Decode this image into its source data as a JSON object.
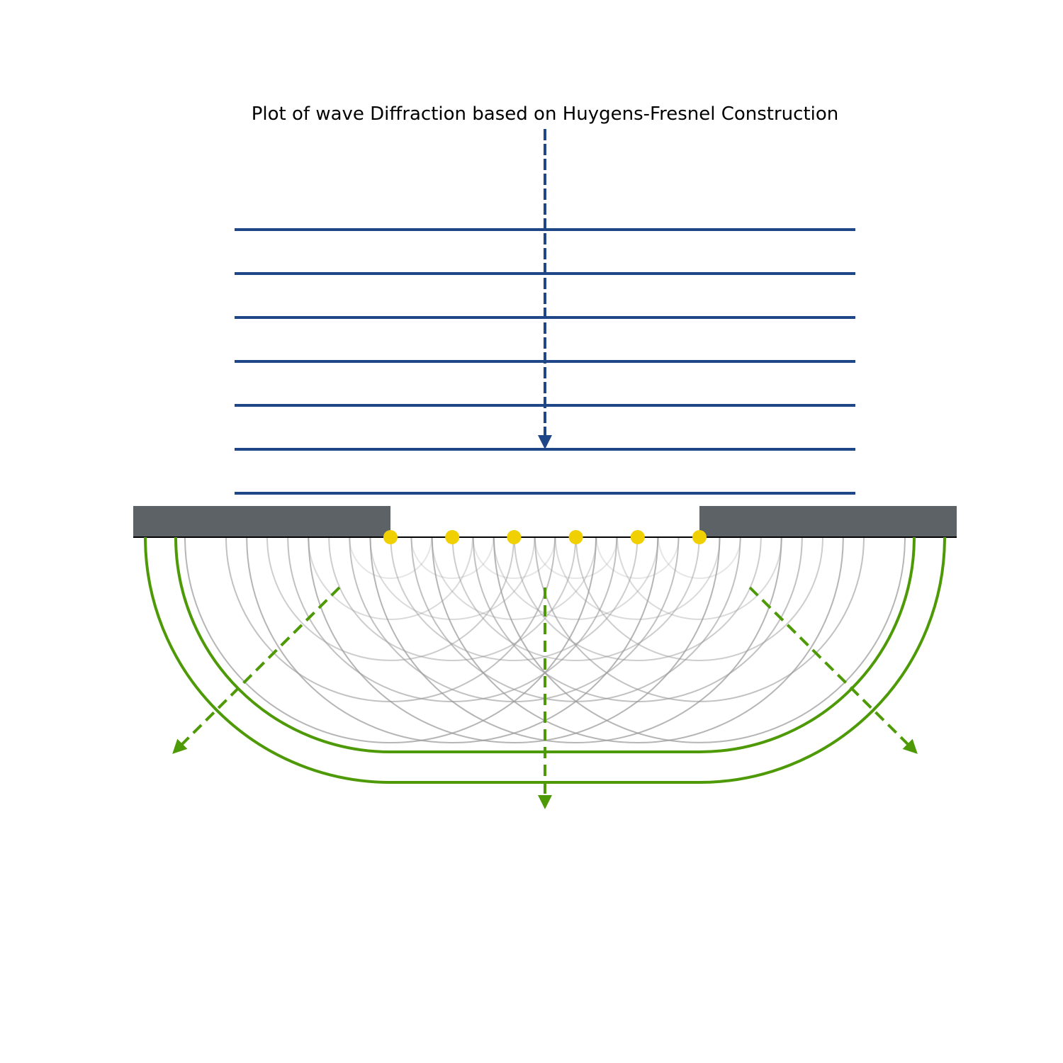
{
  "title": "Plot of wave Diffraction based on Huygens-Fresnel Construction",
  "colors": {
    "incident_wave": "#1f4788",
    "barrier": "#5d6266",
    "huygens_source": "#f0d000",
    "wavelet": "#9a9a9a",
    "diffracted_wave": "#4e9a06",
    "baseline": "#000000"
  },
  "diagram": {
    "incident_wavefront_count": 7,
    "huygens_source_count": 6,
    "wavelet_radii_per_source": 5,
    "diffracted_wavefront_count": 2,
    "diffracted_ray_directions": [
      "down-left",
      "down",
      "down-right"
    ]
  }
}
